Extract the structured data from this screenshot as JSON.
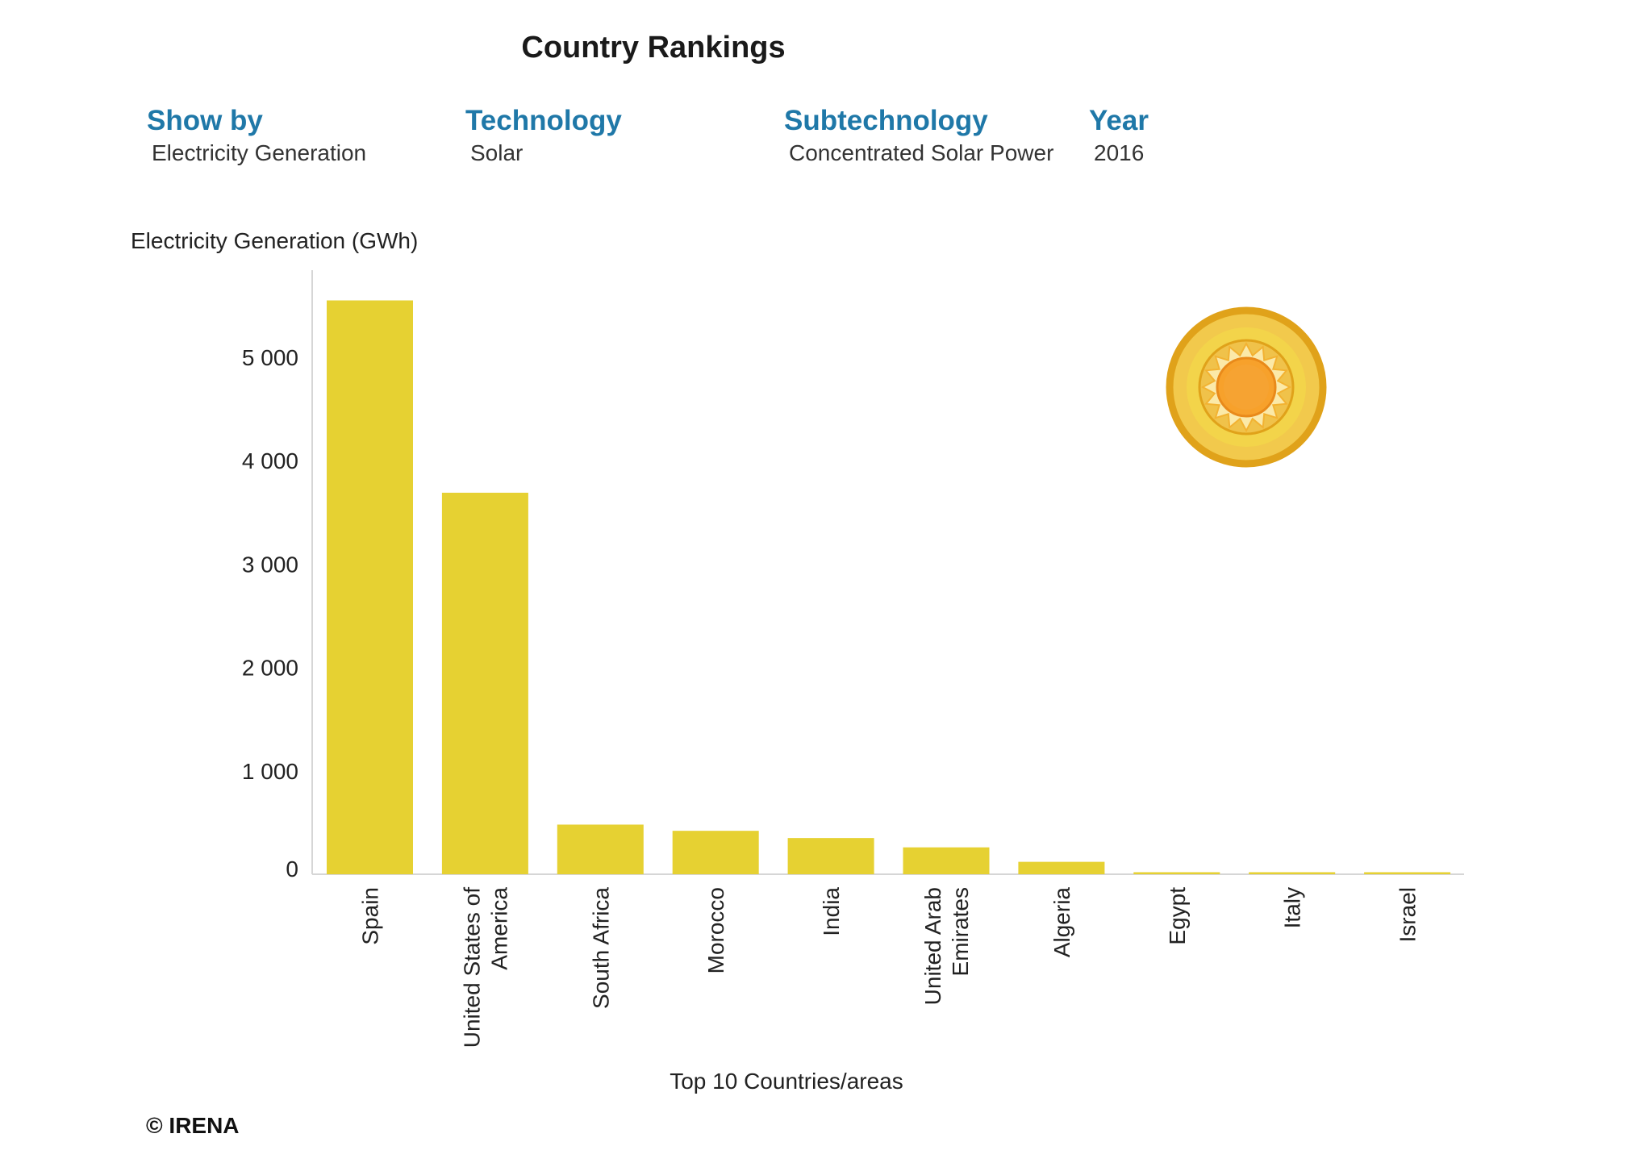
{
  "title": "Country Rankings",
  "filters": [
    {
      "label": "Show by",
      "value": "Electricity Generation"
    },
    {
      "label": "Technology",
      "value": "Solar"
    },
    {
      "label": "Subtechnology",
      "value": "Concentrated Solar Power"
    },
    {
      "label": "Year",
      "value": "2016"
    }
  ],
  "icon": "sun-icon",
  "copyright": "© IRENA",
  "colors": {
    "bar": "#e6d132",
    "label": "#1f78a8"
  },
  "chart_data": {
    "type": "bar",
    "ylabel": "Electricity Generation (GWh)",
    "xlabel": "Top 10 Countries/areas",
    "ylim": [
      0,
      5800
    ],
    "yticks": [
      0,
      1000,
      2000,
      3000,
      4000,
      5000
    ],
    "ytick_labels": [
      "0",
      "1 000",
      "2 000",
      "3 000",
      "4 000",
      "5 000"
    ],
    "categories": [
      "Spain",
      "United States of America",
      "South Africa",
      "Morocco",
      "India",
      "United Arab Emirates",
      "Algeria",
      "Egypt",
      "Italy",
      "Israel"
    ],
    "category_lines": [
      [
        "Spain"
      ],
      [
        "United States of",
        "America"
      ],
      [
        "South Africa"
      ],
      [
        "Morocco"
      ],
      [
        "India"
      ],
      [
        "United Arab",
        "Emirates"
      ],
      [
        "Algeria"
      ],
      [
        "Egypt"
      ],
      [
        "Italy"
      ],
      [
        "Israel"
      ]
    ],
    "values": [
      5550,
      3690,
      480,
      420,
      350,
      260,
      120,
      10,
      10,
      10
    ],
    "grid": false,
    "legend": "none"
  }
}
